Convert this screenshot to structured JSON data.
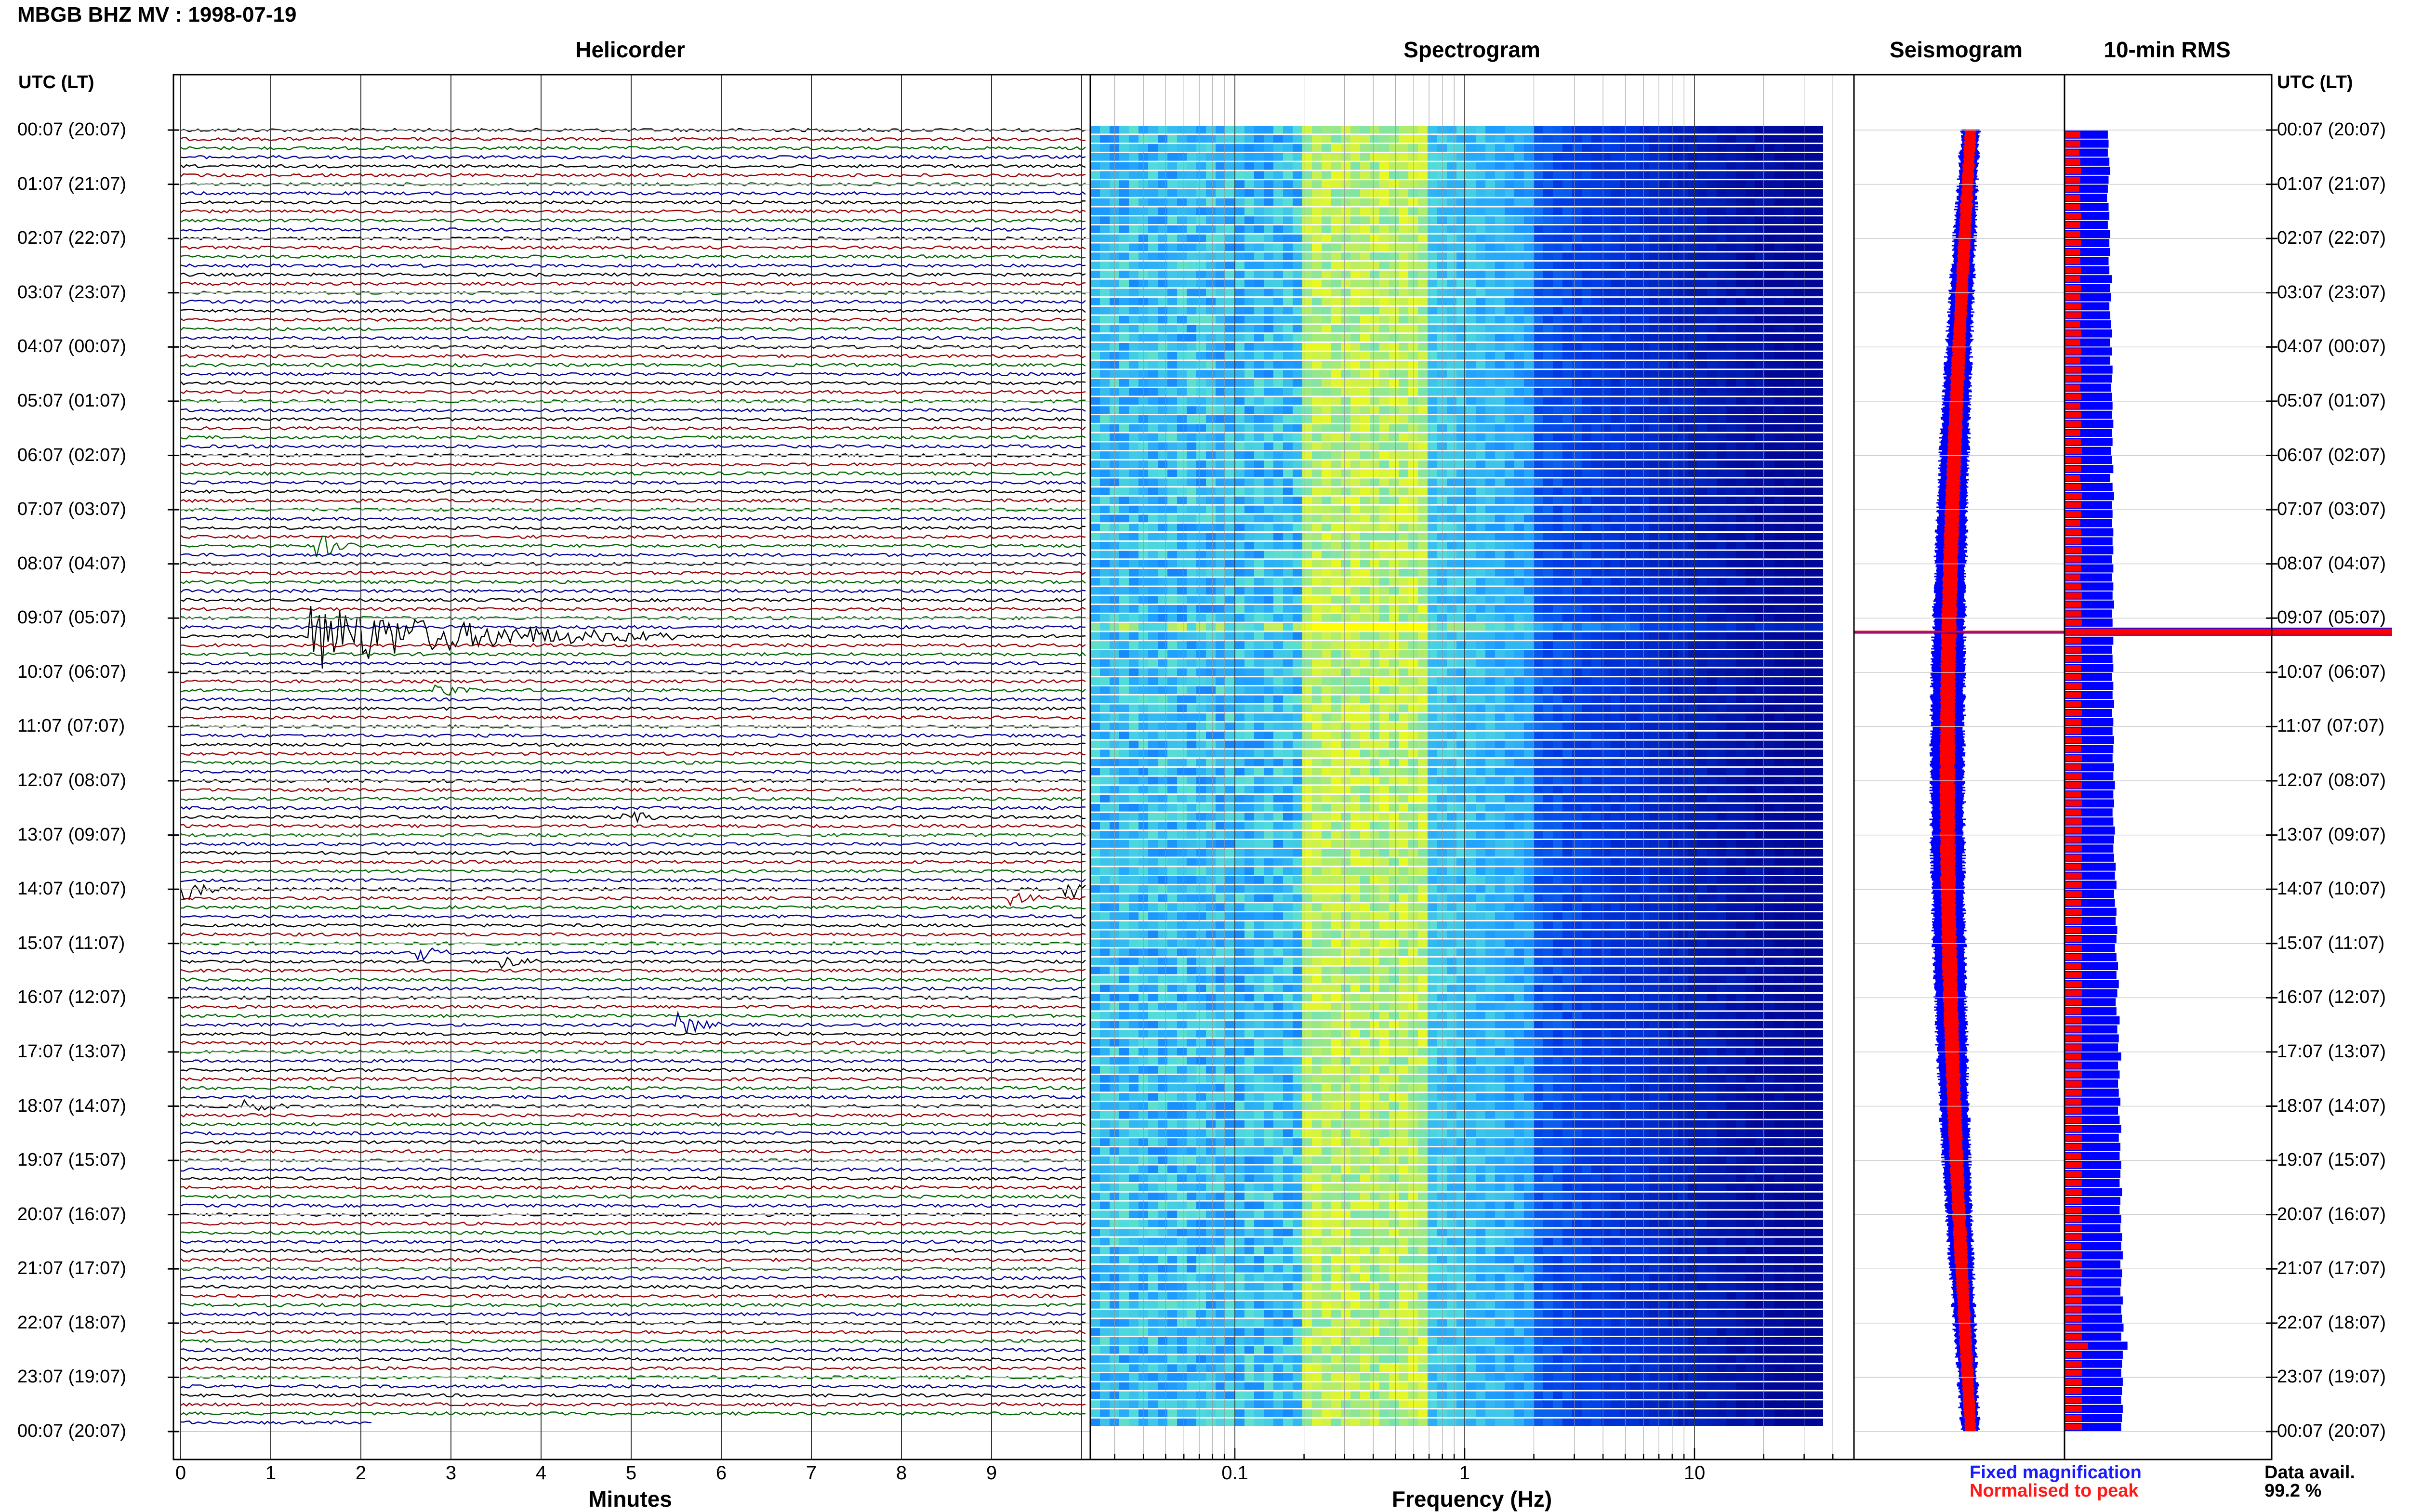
{
  "title": "MBGB BHZ MV : 1998-07-19",
  "panels": {
    "helicorder": "Helicorder",
    "spectrogram": "Spectrogram",
    "seismogram": "Seismogram",
    "rms": "10-min RMS"
  },
  "time_axis_label": "UTC (LT)",
  "time_labels": [
    "00:07 (20:07)",
    "01:07 (21:07)",
    "02:07 (22:07)",
    "03:07 (23:07)",
    "04:07 (00:07)",
    "05:07 (01:07)",
    "06:07 (02:07)",
    "07:07 (03:07)",
    "08:07 (04:07)",
    "09:07 (05:07)",
    "10:07 (06:07)",
    "11:07 (07:07)",
    "12:07 (08:07)",
    "13:07 (09:07)",
    "14:07 (10:07)",
    "15:07 (11:07)",
    "16:07 (12:07)",
    "17:07 (13:07)",
    "18:07 (14:07)",
    "19:07 (15:07)",
    "20:07 (16:07)",
    "21:07 (17:07)",
    "22:07 (18:07)",
    "23:07 (19:07)",
    "00:07 (20:07)"
  ],
  "x_axes": {
    "helicorder": {
      "label": "Minutes",
      "ticks": [
        "0",
        "1",
        "2",
        "3",
        "4",
        "5",
        "6",
        "7",
        "8",
        "9"
      ]
    },
    "spectrogram": {
      "label": "Frequency (Hz)",
      "ticks": [
        "0.1",
        "1",
        "10"
      ],
      "scale": "log",
      "range": [
        0.02,
        50
      ]
    }
  },
  "legend": {
    "fixed": "Fixed magnification",
    "normalised": "Normalised to peak",
    "fixed_color": "#1a1aff",
    "normalised_color": "#ff1a1a"
  },
  "data_availability": {
    "label": "Data avail.",
    "value": "99.2 %"
  },
  "colors": {
    "trace_cycle": [
      "#000000",
      "#990000",
      "#006600",
      "#000099"
    ],
    "spec_low": "#00008b",
    "spec_mid": "#1e90ff",
    "spec_high": "#ffff00",
    "rms_fixed": "#0000ff",
    "rms_norm": "#ff0000"
  },
  "chart_data": [
    {
      "type": "line",
      "name": "Helicorder",
      "x_unit": "minutes",
      "x_range": [
        0,
        10
      ],
      "rows": 144,
      "trace_colors_cycle": [
        "black",
        "darkred",
        "green",
        "blue"
      ],
      "events": [
        {
          "time": "07:47",
          "minute": 1.6,
          "amplitude": "moderate"
        },
        {
          "time": "09:27",
          "minute": 1.5,
          "amplitude": "large",
          "duration_min": 4.0
        },
        {
          "time": "10:27",
          "minute": 2.9,
          "amplitude": "small"
        },
        {
          "time": "12:47",
          "minute": 5.0,
          "amplitude": "small"
        },
        {
          "time": "14:07",
          "minute": 0.1,
          "amplitude": "moderate"
        },
        {
          "time": "14:07",
          "minute": 9.9,
          "amplitude": "moderate"
        },
        {
          "time": "14:17",
          "minute": 9.3,
          "amplitude": "small"
        },
        {
          "time": "15:17",
          "minute": 2.7,
          "amplitude": "small"
        },
        {
          "time": "15:27",
          "minute": 3.6,
          "amplitude": "small"
        },
        {
          "time": "16:37",
          "minute": 5.6,
          "amplitude": "moderate"
        },
        {
          "time": "18:07",
          "minute": 0.8,
          "amplitude": "small"
        }
      ]
    },
    {
      "type": "heatmap",
      "name": "Spectrogram",
      "x_unit": "Hz",
      "x_scale": "log",
      "x_range": [
        0.02,
        50
      ],
      "peak_band_hz": [
        0.2,
        0.6
      ],
      "falloff_hz": 2.0
    },
    {
      "type": "line",
      "name": "Seismogram",
      "series": [
        {
          "name": "Fixed magnification",
          "color": "blue"
        },
        {
          "name": "Normalised to peak",
          "color": "red"
        }
      ],
      "spike_time": "09:37"
    },
    {
      "type": "bar",
      "name": "10-min RMS",
      "series": [
        {
          "name": "Fixed magnification",
          "color": "blue",
          "values": [
            0.55,
            0.56,
            0.55,
            0.57,
            0.58,
            0.56,
            0.55,
            0.54,
            0.56,
            0.57,
            0.55,
            0.58,
            0.57,
            0.58,
            0.56,
            0.57,
            0.6,
            0.58,
            0.59,
            0.57,
            0.58,
            0.59,
            0.6,
            0.58,
            0.6,
            0.58,
            0.61,
            0.6,
            0.59,
            0.6,
            0.61,
            0.6,
            0.62,
            0.6,
            0.61,
            0.59,
            0.6,
            0.62,
            0.58,
            0.61,
            0.63,
            0.6,
            0.61,
            0.6,
            0.62,
            0.61,
            0.62,
            0.6,
            0.62,
            0.6,
            0.62,
            0.61,
            0.63,
            0.6,
            0.61,
            1.0,
            0.62,
            0.6,
            0.61,
            0.62,
            0.6,
            0.62,
            0.61,
            0.63,
            0.6,
            0.62,
            0.61,
            0.63,
            0.62,
            0.61,
            0.63,
            0.62,
            0.64,
            0.62,
            0.63,
            0.61,
            0.62,
            0.64,
            0.63,
            0.62,
            0.63,
            0.65,
            0.64,
            0.66,
            0.63,
            0.64,
            0.66,
            0.65,
            0.67,
            0.66,
            0.64,
            0.66,
            0.68,
            0.66,
            0.69,
            0.67,
            0.65,
            0.66,
            0.7,
            0.67,
            0.69,
            0.68,
            0.72,
            0.68,
            0.7,
            0.68,
            0.69,
            0.71,
            0.68,
            0.7,
            0.72,
            0.69,
            0.71,
            0.7,
            0.72,
            0.71,
            0.7,
            0.73,
            0.71,
            0.7,
            0.72,
            0.71,
            0.73,
            0.72,
            0.74,
            0.71,
            0.73,
            0.72,
            0.71,
            0.74,
            0.72,
            0.73,
            0.75,
            0.72,
            0.8,
            0.74,
            0.73,
            0.72,
            0.74,
            0.73,
            0.72,
            0.74,
            0.73,
            0.72
          ]
        },
        {
          "name": "Normalised to peak",
          "color": "red",
          "values": [
            0.2,
            0.2,
            0.19,
            0.2,
            0.21,
            0.2,
            0.19,
            0.2,
            0.2,
            0.21,
            0.2,
            0.2,
            0.21,
            0.2,
            0.2,
            0.21,
            0.2,
            0.21,
            0.2,
            0.21,
            0.21,
            0.2,
            0.21,
            0.2,
            0.21,
            0.2,
            0.21,
            0.21,
            0.2,
            0.21,
            0.2,
            0.21,
            0.21,
            0.2,
            0.21,
            0.22,
            0.21,
            0.21,
            0.2,
            0.21,
            0.22,
            0.21,
            0.21,
            0.2,
            0.21,
            0.21,
            0.22,
            0.21,
            0.21,
            0.2,
            0.21,
            0.22,
            0.21,
            0.21,
            0.22,
            1.0,
            0.21,
            0.21,
            0.22,
            0.21,
            0.21,
            0.22,
            0.21,
            0.21,
            0.22,
            0.21,
            0.21,
            0.22,
            0.21,
            0.22,
            0.21,
            0.22,
            0.22,
            0.21,
            0.22,
            0.21,
            0.22,
            0.22,
            0.21,
            0.22,
            0.22,
            0.21,
            0.22,
            0.22,
            0.22,
            0.21,
            0.22,
            0.22,
            0.21,
            0.22,
            0.22,
            0.22,
            0.21,
            0.22,
            0.22,
            0.22,
            0.22,
            0.21,
            0.22,
            0.22,
            0.22,
            0.22,
            0.21,
            0.22,
            0.22,
            0.22,
            0.22,
            0.21,
            0.22,
            0.22,
            0.22,
            0.22,
            0.22,
            0.21,
            0.22,
            0.22,
            0.22,
            0.22,
            0.22,
            0.22,
            0.22,
            0.22,
            0.22,
            0.21,
            0.22,
            0.22,
            0.22,
            0.22,
            0.22,
            0.22,
            0.22,
            0.22,
            0.22,
            0.22,
            0.3,
            0.22,
            0.22,
            0.22,
            0.22,
            0.22,
            0.22,
            0.22,
            0.22,
            0.22
          ]
        }
      ]
    }
  ]
}
